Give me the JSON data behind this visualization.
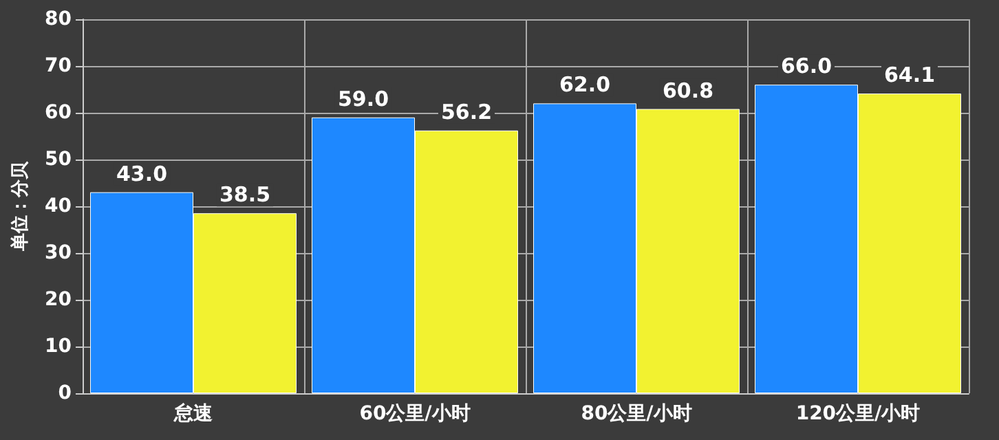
{
  "chart_data": {
    "type": "bar",
    "ylabel": "单位：分贝",
    "categories": [
      "怠速",
      "60公里/小时",
      "80公里/小时",
      "120公里/小时"
    ],
    "series": [
      {
        "color": "#1e88ff",
        "values": [
          43.0,
          59.0,
          62.0,
          66.0
        ],
        "value_labels": [
          "43.0",
          "59.0",
          "62.0",
          "66.0"
        ]
      },
      {
        "color": "#f2f230",
        "values": [
          38.5,
          56.2,
          60.8,
          64.1
        ],
        "value_labels": [
          "38.5",
          "56.2",
          "60.8",
          "64.1"
        ]
      }
    ],
    "ylim": [
      0,
      80
    ],
    "yticks": [
      0,
      10,
      20,
      30,
      40,
      50,
      60,
      70,
      80
    ],
    "grid": true
  }
}
